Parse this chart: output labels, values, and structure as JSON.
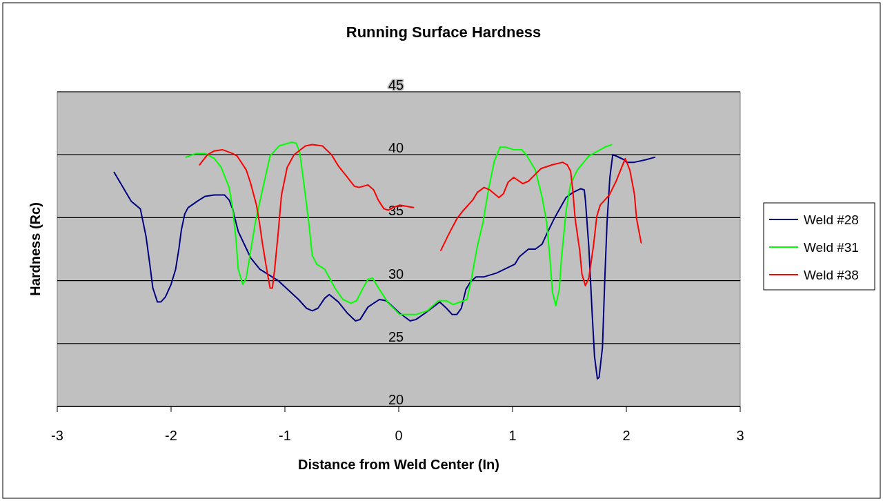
{
  "chart_data": {
    "type": "line",
    "title": "Running Surface Hardness",
    "xlabel": "Distance from Weld Center  (In)",
    "ylabel": "Hardness (Rc)",
    "xlim": [
      -3,
      3
    ],
    "xticks": [
      -3,
      -2,
      -1,
      0,
      1,
      2,
      3
    ],
    "ylim": [
      20,
      45
    ],
    "yticks": [
      20,
      25,
      30,
      35,
      40,
      45
    ],
    "grid": "y",
    "legend": "right",
    "marker": "none",
    "line_style": "solid",
    "series": [
      {
        "name": "Weld #28",
        "color": "#000080",
        "x": [
          -2.5,
          -2.35,
          -2.27,
          -2.22,
          -2.19,
          -2.16,
          -2.12,
          -2.09,
          -2.05,
          -2.0,
          -1.96,
          -1.93,
          -1.91,
          -1.88,
          -1.85,
          -1.77,
          -1.7,
          -1.62,
          -1.53,
          -1.49,
          -1.46,
          -1.41,
          -1.3,
          -1.22,
          -1.06,
          -0.88,
          -0.81,
          -0.76,
          -0.71,
          -0.65,
          -0.61,
          -0.53,
          -0.45,
          -0.38,
          -0.34,
          -0.27,
          -0.17,
          -0.11,
          0.01,
          0.1,
          0.15,
          0.23,
          0.36,
          0.42,
          0.47,
          0.51,
          0.55,
          0.59,
          0.63,
          0.68,
          0.75,
          0.86,
          1.02,
          1.06,
          1.14,
          1.2,
          1.26,
          1.3,
          1.37,
          1.47,
          1.53,
          1.6,
          1.63,
          1.64,
          1.67,
          1.7,
          1.72,
          1.745,
          1.76,
          1.79,
          1.81,
          1.83,
          1.855,
          1.88,
          1.91,
          1.98,
          2.0,
          2.07,
          2.17,
          2.25
        ],
        "values": [
          38.6,
          36.3,
          35.7,
          33.5,
          31.5,
          29.4,
          28.3,
          28.3,
          28.7,
          29.7,
          30.9,
          32.6,
          34.0,
          35.3,
          35.8,
          36.3,
          36.7,
          36.8,
          36.8,
          36.4,
          35.7,
          33.9,
          31.8,
          30.9,
          30.0,
          28.5,
          27.8,
          27.6,
          27.8,
          28.6,
          28.9,
          28.3,
          27.4,
          26.8,
          26.9,
          27.9,
          28.5,
          28.4,
          27.4,
          26.8,
          26.9,
          27.4,
          28.3,
          27.8,
          27.3,
          27.3,
          27.8,
          29.3,
          29.9,
          30.3,
          30.3,
          30.6,
          31.3,
          31.9,
          32.5,
          32.5,
          32.9,
          33.7,
          35.0,
          36.6,
          37.0,
          37.3,
          37.2,
          36.4,
          32.7,
          27.3,
          24.0,
          22.2,
          22.3,
          24.7,
          30.0,
          34.6,
          38.2,
          40.0,
          39.9,
          39.6,
          39.4,
          39.4,
          39.6,
          39.8
        ]
      },
      {
        "name": "Weld #31",
        "color": "#00ff00",
        "x": [
          -1.87,
          -1.78,
          -1.7,
          -1.62,
          -1.56,
          -1.49,
          -1.46,
          -1.43,
          -1.41,
          -1.37,
          -1.34,
          -1.3,
          -1.26,
          -1.2,
          -1.13,
          -1.05,
          -0.94,
          -0.9,
          -0.87,
          -0.84,
          -0.79,
          -0.76,
          -0.72,
          -0.65,
          -0.56,
          -0.49,
          -0.42,
          -0.37,
          -0.32,
          -0.27,
          -0.23,
          -0.17,
          -0.09,
          0.01,
          0.15,
          0.25,
          0.35,
          0.42,
          0.48,
          0.6,
          0.64,
          0.69,
          0.74,
          0.79,
          0.84,
          0.89,
          0.94,
          1.01,
          1.08,
          1.12,
          1.2,
          1.26,
          1.3,
          1.33,
          1.35,
          1.38,
          1.41,
          1.43,
          1.47,
          1.51,
          1.57,
          1.67,
          1.81,
          1.87
        ],
        "values": [
          39.8,
          40.1,
          40.1,
          39.7,
          39.0,
          37.4,
          35.8,
          33.3,
          30.9,
          29.7,
          30.2,
          32.4,
          34.6,
          37.1,
          39.9,
          40.7,
          41.0,
          40.9,
          40.2,
          38.2,
          34.6,
          32.0,
          31.3,
          30.9,
          29.4,
          28.5,
          28.2,
          28.4,
          29.3,
          30.1,
          30.2,
          29.3,
          28.2,
          27.3,
          27.3,
          27.6,
          28.4,
          28.4,
          28.1,
          28.5,
          30.2,
          32.7,
          34.6,
          37.3,
          39.5,
          40.6,
          40.6,
          40.4,
          40.4,
          40.0,
          38.8,
          36.6,
          34.6,
          31.6,
          29.1,
          28.0,
          29.3,
          31.8,
          35.5,
          37.7,
          38.8,
          39.9,
          40.6,
          40.8
        ]
      },
      {
        "name": "Weld #38",
        "color": "#ff0000",
        "x": [
          -1.75,
          -1.68,
          -1.62,
          -1.55,
          -1.46,
          -1.42,
          -1.34,
          -1.3,
          -1.25,
          -1.22,
          -1.2,
          -1.16,
          -1.13,
          -1.11,
          -1.09,
          -1.06,
          -1.03,
          -0.98,
          -0.92,
          -0.82,
          -0.76,
          -0.67,
          -0.59,
          -0.53,
          -0.45,
          -0.39,
          -0.35,
          -0.27,
          -0.22,
          -0.18,
          -0.13,
          -0.09,
          -0.05,
          0.01,
          0.13,
          0.25,
          0.37,
          0.44,
          0.51,
          0.56,
          0.65,
          0.69,
          0.75,
          0.8,
          0.88,
          0.92,
          0.96,
          1.01,
          1.09,
          1.14,
          1.25,
          1.35,
          1.44,
          1.48,
          1.51,
          1.53,
          1.55,
          1.59,
          1.61,
          1.64,
          1.67,
          1.71,
          1.74,
          1.77,
          1.85,
          1.91,
          1.99,
          2.03,
          2.07,
          2.09,
          2.13
        ],
        "values": [
          39.2,
          40.0,
          40.3,
          40.4,
          40.1,
          39.9,
          38.8,
          37.7,
          36.0,
          34.4,
          33.1,
          30.9,
          29.4,
          29.4,
          30.9,
          33.7,
          36.8,
          39.0,
          40.0,
          40.7,
          40.8,
          40.7,
          40.0,
          39.1,
          38.2,
          37.5,
          37.4,
          37.6,
          37.2,
          36.4,
          35.7,
          35.6,
          35.8,
          36.0,
          35.8,
          null,
          32.4,
          33.7,
          34.9,
          35.5,
          36.4,
          37.0,
          37.4,
          37.2,
          36.6,
          36.9,
          37.8,
          38.2,
          37.7,
          37.9,
          38.9,
          39.2,
          39.4,
          39.2,
          38.7,
          37.1,
          34.9,
          32.4,
          30.5,
          29.6,
          30.2,
          32.7,
          35.1,
          36.0,
          36.8,
          37.9,
          39.7,
          38.8,
          36.9,
          34.9,
          33.0
        ]
      }
    ]
  }
}
